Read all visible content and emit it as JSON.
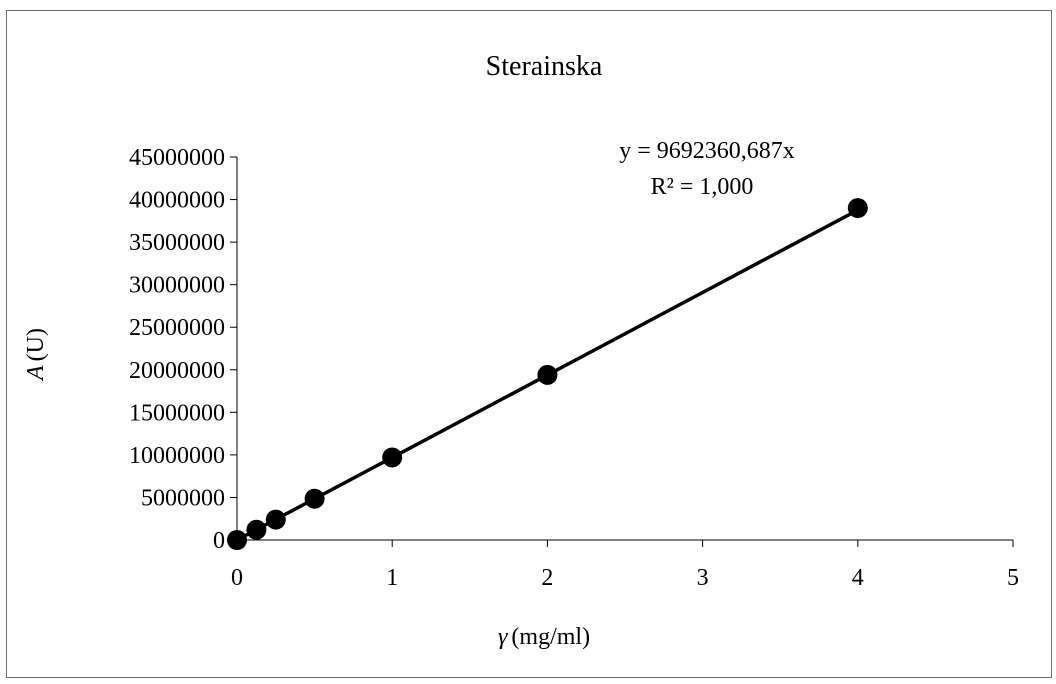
{
  "chart_data": {
    "type": "scatter",
    "title": "Sterainska",
    "xlabel_symbol": "γ",
    "xlabel_unit": "(mg/ml)",
    "ylabel_symbol": "A",
    "ylabel_unit": "(U)",
    "xlim": [
      0,
      5
    ],
    "ylim": [
      0,
      45000000
    ],
    "x_ticks": [
      0,
      1,
      2,
      3,
      4,
      5
    ],
    "y_ticks": [
      0,
      5000000,
      10000000,
      15000000,
      20000000,
      25000000,
      30000000,
      35000000,
      40000000,
      45000000
    ],
    "x_tick_labels": [
      "0",
      "1",
      "2",
      "3",
      "4",
      "5"
    ],
    "y_tick_labels": [
      "0",
      "5000000",
      "10000000",
      "15000000",
      "20000000",
      "25000000",
      "30000000",
      "35000000",
      "40000000",
      "45000000"
    ],
    "grid": false,
    "legend": "none",
    "series": [
      {
        "x": [
          0,
          0.125,
          0.25,
          0.5,
          1,
          2,
          4
        ],
        "y": [
          0,
          1200000,
          2400000,
          4850000,
          9700000,
          19400000,
          39000000
        ],
        "marker_color": "#000000"
      }
    ],
    "trendline": {
      "type": "linear",
      "slope": 9692360.687,
      "intercept": 0,
      "x_range": [
        0,
        4
      ],
      "color": "#000000"
    },
    "annotations": {
      "equation": "y = 9692360,687x",
      "r_squared": "R² = 1,000"
    }
  }
}
